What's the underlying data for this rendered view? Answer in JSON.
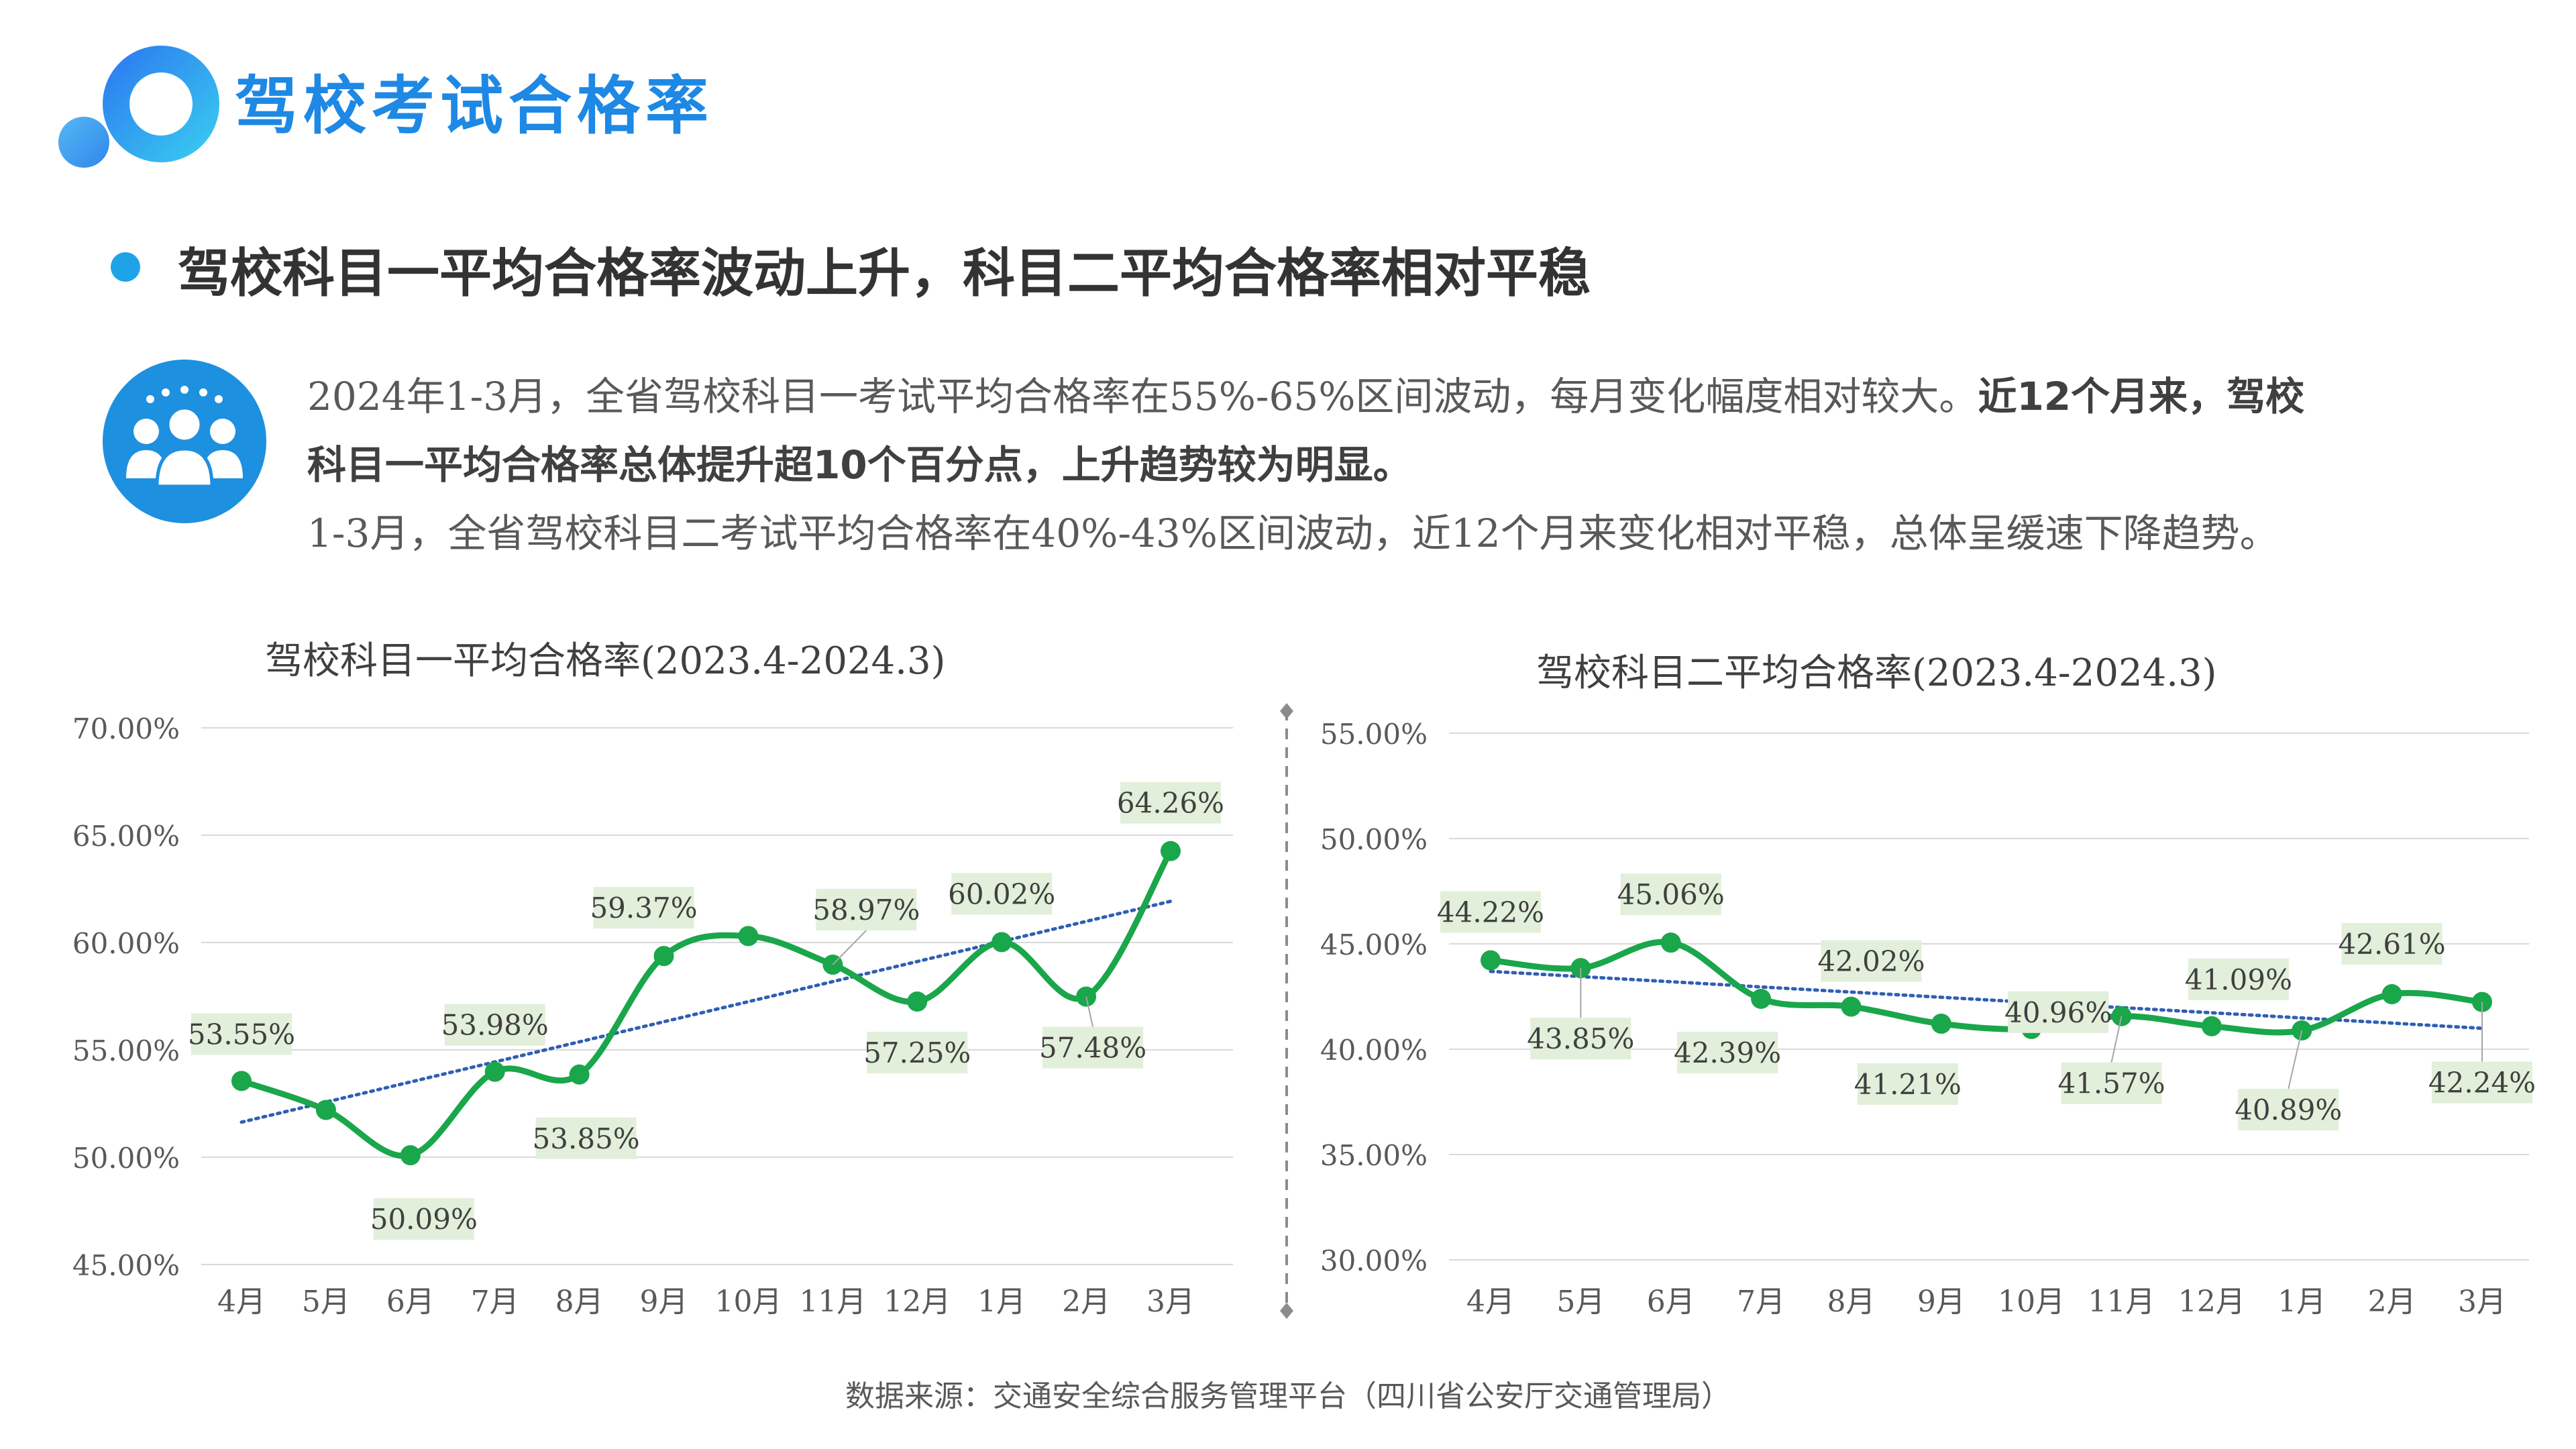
{
  "page": {
    "title": "驾校考试合格率",
    "headline": "驾校科目一平均合格率波动上升，科目二平均合格率相对平稳",
    "summary_p1a": "2024年1-3月，全省驾校科目一考试平均合格率在55%-65%区间波动，每月变化幅度相对较大。",
    "summary_p1b": "近12个月来，驾校",
    "summary_p1c": "科目一平均合格率总体提升超10个百分点，上升趋势较为明显。",
    "summary_p2": "1-3月，全省驾校科目二考试平均合格率在40%-43%区间波动，近12个月来变化相对平稳，总体呈缓速下降趋势。",
    "source": "数据来源：交通安全综合服务管理平台（四川省公安厅交通管理局）"
  },
  "colors": {
    "title": "#1e88e5",
    "accent": "#1ea3e8",
    "line": "#1aa64a",
    "trend": "#2f5fb3",
    "label_bg": "#e2efda",
    "grid": "#d9d9d9"
  },
  "icons": [
    "logo-rings-icon",
    "people-group-icon"
  ],
  "chart_data": [
    {
      "type": "line",
      "title": "驾校科目一平均合格率(2023.4-2024.3)",
      "categories": [
        "4月",
        "5月",
        "6月",
        "7月",
        "8月",
        "9月",
        "10月",
        "11月",
        "12月",
        "1月",
        "2月",
        "3月"
      ],
      "values": [
        53.55,
        52.2,
        50.09,
        53.98,
        53.85,
        59.37,
        60.3,
        58.97,
        57.25,
        60.02,
        57.48,
        64.26
      ],
      "data_labels": [
        "53.55%",
        null,
        "50.09%",
        "53.98%",
        "53.85%",
        "59.37%",
        null,
        "58.97%",
        "57.25%",
        "60.02%",
        "57.48%",
        "64.26%"
      ],
      "yticks": [
        "70.00%",
        "65.00%",
        "60.00%",
        "55.00%",
        "50.00%",
        "45.00%"
      ],
      "ylim": [
        45,
        70
      ],
      "trendline": "linear",
      "grid": true,
      "legend": "none"
    },
    {
      "type": "line",
      "title": "驾校科目二平均合格率(2023.4-2024.3)",
      "categories": [
        "4月",
        "5月",
        "6月",
        "7月",
        "8月",
        "9月",
        "10月",
        "11月",
        "12月",
        "1月",
        "2月",
        "3月"
      ],
      "values": [
        44.22,
        43.85,
        45.06,
        42.39,
        42.02,
        41.21,
        40.96,
        41.57,
        41.09,
        40.89,
        42.61,
        42.24
      ],
      "data_labels": [
        "44.22%",
        "43.85%",
        "45.06%",
        "42.39%",
        "42.02%",
        "41.21%",
        "40.96%",
        "41.57%",
        "41.09%",
        "40.89%",
        "42.61%",
        "42.24%"
      ],
      "yticks": [
        "55.00%",
        "50.00%",
        "45.00%",
        "40.00%",
        "35.00%",
        "30.00%"
      ],
      "ylim": [
        30,
        55
      ],
      "trendline": "linear",
      "grid": true,
      "legend": "none"
    }
  ]
}
